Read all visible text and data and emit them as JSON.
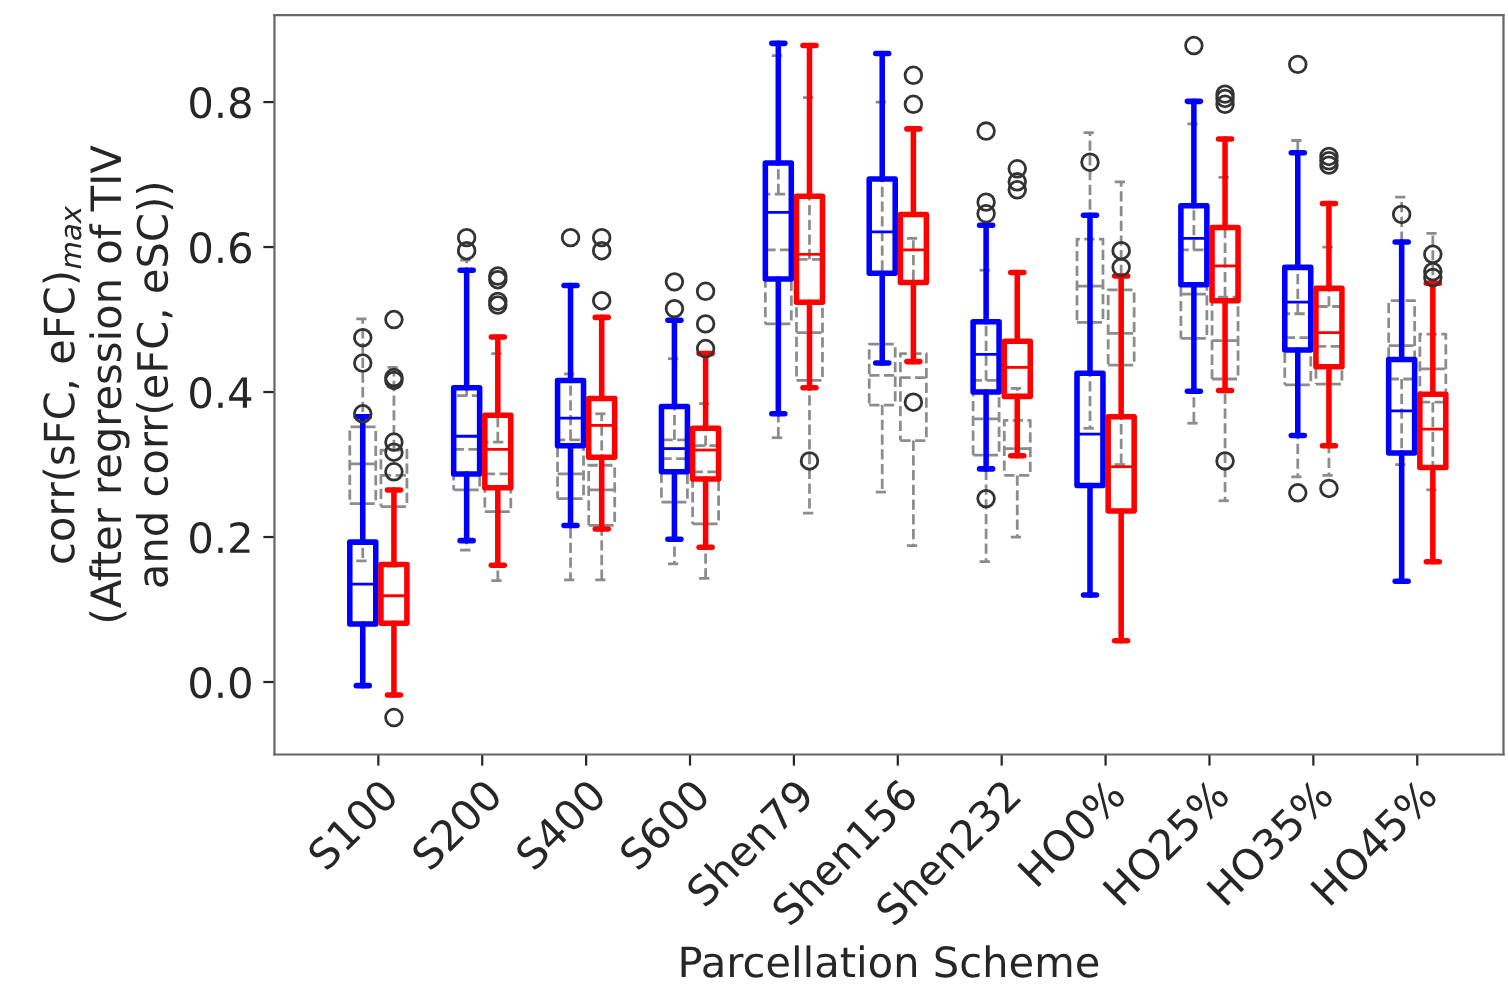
{
  "chart_data": {
    "type": "box",
    "xlabel": "Parcellation Scheme",
    "ylabel": "corr(sFC, eFC)$_{max}$\n(After regression of TIV\nand corr(eFC, eSC))",
    "categories": [
      "S100",
      "S200",
      "S400",
      "S600",
      "Shen79",
      "Shen156",
      "Shen232",
      "HO0%",
      "HO25%",
      "HO35%",
      "HO45%"
    ],
    "ylim": [
      -0.1,
      0.92
    ],
    "yticks": [
      {
        "value": 0.0,
        "label": "0.0"
      },
      {
        "value": 0.2,
        "label": "0.2"
      },
      {
        "value": 0.4,
        "label": "0.4"
      },
      {
        "value": 0.6,
        "label": "0.6"
      },
      {
        "value": 0.8,
        "label": "0.8"
      }
    ],
    "grid": false,
    "legend": false,
    "series": [
      {
        "color": "#8c8c8c",
        "line_style": "dashed",
        "boxes": [
          {
            "low": 0.167,
            "q1": 0.246,
            "median": 0.301,
            "q3": 0.352,
            "high": 0.501
          },
          {
            "low": 0.182,
            "q1": 0.265,
            "median": 0.321,
            "q3": 0.395,
            "high": 0.582
          },
          {
            "low": 0.141,
            "q1": 0.253,
            "median": 0.287,
            "q3": 0.334,
            "high": 0.425
          },
          {
            "low": 0.163,
            "q1": 0.248,
            "median": 0.308,
            "q3": 0.334,
            "high": 0.446
          },
          {
            "low": 0.337,
            "q1": 0.494,
            "median": 0.596,
            "q3": 0.673,
            "high": 0.864
          },
          {
            "low": 0.262,
            "q1": 0.382,
            "median": 0.423,
            "q3": 0.466,
            "high": 0.8
          },
          {
            "low": 0.166,
            "q1": 0.313,
            "median": 0.363,
            "q3": 0.416,
            "high": 0.568
          },
          {
            "low": 0.35,
            "q1": 0.496,
            "median": 0.546,
            "q3": 0.611,
            "high": 0.758
          },
          {
            "low": 0.357,
            "q1": 0.474,
            "median": 0.535,
            "q3": 0.596,
            "high": 0.77
          },
          {
            "low": 0.283,
            "q1": 0.41,
            "median": 0.475,
            "q3": 0.508,
            "high": 0.747
          },
          {
            "low": 0.3,
            "q1": 0.418,
            "median": 0.464,
            "q3": 0.526,
            "high": 0.669
          }
        ]
      },
      {
        "color": "#8c8c8c",
        "line_style": "dashed",
        "boxes": [
          {
            "low": 0.16,
            "q1": 0.242,
            "median": 0.285,
            "q3": 0.32,
            "high": 0.434,
            "outliers": [
              0.416,
              0.42,
              0.5
            ]
          },
          {
            "low": 0.14,
            "q1": 0.235,
            "median": 0.287,
            "q3": 0.331,
            "high": 0.453
          },
          {
            "low": 0.141,
            "q1": 0.216,
            "median": 0.265,
            "q3": 0.299,
            "high": 0.37
          },
          {
            "low": 0.143,
            "q1": 0.218,
            "median": 0.29,
            "q3": 0.326,
            "high": 0.384
          },
          {
            "low": 0.233,
            "q1": 0.416,
            "median": 0.482,
            "q3": 0.583,
            "high": 0.806,
            "outliers": [
              0.305
            ]
          },
          {
            "low": 0.188,
            "q1": 0.333,
            "median": 0.42,
            "q3": 0.453,
            "high": 0.612,
            "outliers": [
              0.386
            ]
          },
          {
            "low": 0.2,
            "q1": 0.285,
            "median": 0.322,
            "q3": 0.361,
            "high": 0.405
          },
          {
            "low": 0.3,
            "q1": 0.437,
            "median": 0.481,
            "q3": 0.541,
            "high": 0.69
          },
          {
            "low": 0.25,
            "q1": 0.418,
            "median": 0.471,
            "q3": 0.531,
            "high": 0.696
          },
          {
            "low": 0.285,
            "q1": 0.411,
            "median": 0.463,
            "q3": 0.518,
            "high": 0.6
          },
          {
            "low": 0.265,
            "q1": 0.386,
            "median": 0.432,
            "q3": 0.48,
            "high": 0.619
          }
        ]
      },
      {
        "color": "#0000ff",
        "line_style": "solid",
        "boxes": [
          {
            "low": -0.005,
            "q1": 0.08,
            "median": 0.135,
            "q3": 0.193,
            "high": 0.366,
            "outliers": [
              0.37,
              0.44,
              0.475
            ]
          },
          {
            "low": 0.195,
            "q1": 0.287,
            "median": 0.339,
            "q3": 0.406,
            "high": 0.568,
            "outliers": [
              0.595,
              0.613
            ]
          },
          {
            "low": 0.216,
            "q1": 0.326,
            "median": 0.364,
            "q3": 0.416,
            "high": 0.547,
            "outliers": [
              0.613
            ]
          },
          {
            "low": 0.197,
            "q1": 0.29,
            "median": 0.322,
            "q3": 0.38,
            "high": 0.499,
            "outliers": [
              0.515,
              0.552
            ]
          },
          {
            "low": 0.37,
            "q1": 0.556,
            "median": 0.648,
            "q3": 0.716,
            "high": 0.881
          },
          {
            "low": 0.44,
            "q1": 0.564,
            "median": 0.621,
            "q3": 0.694,
            "high": 0.867
          },
          {
            "low": 0.294,
            "q1": 0.4,
            "median": 0.452,
            "q3": 0.497,
            "high": 0.63,
            "outliers": [
              0.253,
              0.646,
              0.662,
              0.76
            ]
          },
          {
            "low": 0.12,
            "q1": 0.271,
            "median": 0.342,
            "q3": 0.426,
            "high": 0.644,
            "outliers": [
              0.717
            ]
          },
          {
            "low": 0.401,
            "q1": 0.548,
            "median": 0.612,
            "q3": 0.657,
            "high": 0.801,
            "outliers": [
              0.878
            ]
          },
          {
            "low": 0.34,
            "q1": 0.458,
            "median": 0.524,
            "q3": 0.572,
            "high": 0.73,
            "outliers": [
              0.261,
              0.852
            ]
          },
          {
            "low": 0.139,
            "q1": 0.316,
            "median": 0.374,
            "q3": 0.445,
            "high": 0.607,
            "outliers": [
              0.645
            ]
          }
        ]
      },
      {
        "color": "#ff0000",
        "line_style": "solid",
        "boxes": [
          {
            "low": -0.018,
            "q1": 0.081,
            "median": 0.119,
            "q3": 0.162,
            "high": 0.265,
            "outliers": [
              -0.049,
              0.29,
              0.317,
              0.331
            ]
          },
          {
            "low": 0.161,
            "q1": 0.268,
            "median": 0.321,
            "q3": 0.368,
            "high": 0.476,
            "outliers": [
              0.52,
              0.525,
              0.555,
              0.56
            ]
          },
          {
            "low": 0.211,
            "q1": 0.31,
            "median": 0.354,
            "q3": 0.391,
            "high": 0.503,
            "outliers": [
              0.526,
              0.595,
              0.613
            ]
          },
          {
            "low": 0.186,
            "q1": 0.28,
            "median": 0.32,
            "q3": 0.35,
            "high": 0.453,
            "outliers": [
              0.46,
              0.494,
              0.539
            ]
          },
          {
            "low": 0.406,
            "q1": 0.524,
            "median": 0.59,
            "q3": 0.67,
            "high": 0.878
          },
          {
            "low": 0.442,
            "q1": 0.551,
            "median": 0.596,
            "q3": 0.645,
            "high": 0.763,
            "outliers": [
              0.797,
              0.837
            ]
          },
          {
            "low": 0.312,
            "q1": 0.394,
            "median": 0.434,
            "q3": 0.47,
            "high": 0.565,
            "outliers": [
              0.679,
              0.69,
              0.708
            ]
          },
          {
            "low": 0.057,
            "q1": 0.236,
            "median": 0.297,
            "q3": 0.366,
            "high": 0.56,
            "outliers": [
              0.572,
              0.595
            ]
          },
          {
            "low": 0.402,
            "q1": 0.526,
            "median": 0.574,
            "q3": 0.627,
            "high": 0.749,
            "outliers": [
              0.305,
              0.797,
              0.805,
              0.811
            ]
          },
          {
            "low": 0.326,
            "q1": 0.435,
            "median": 0.482,
            "q3": 0.543,
            "high": 0.66,
            "outliers": [
              0.267,
              0.713,
              0.719,
              0.725
            ]
          },
          {
            "low": 0.166,
            "q1": 0.296,
            "median": 0.349,
            "q3": 0.397,
            "high": 0.55,
            "outliers": [
              0.558,
              0.566,
              0.59
            ]
          }
        ]
      }
    ]
  }
}
